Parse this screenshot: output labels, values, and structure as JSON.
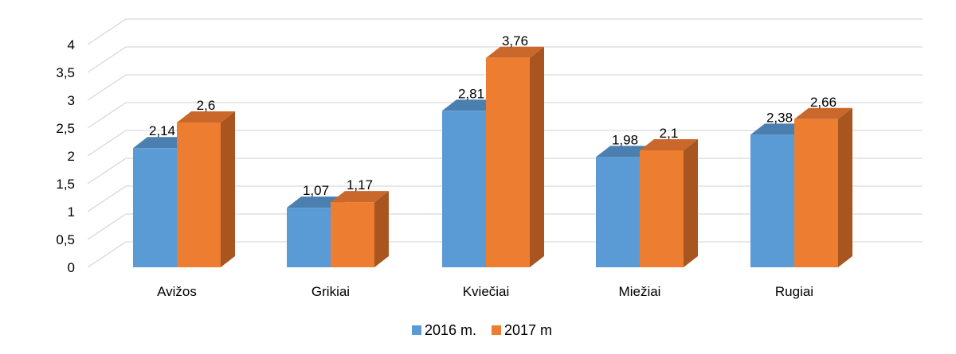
{
  "chart_data": {
    "type": "bar",
    "categories": [
      "Avižos",
      "Grikiai",
      "Kviečiai",
      "Miežiai",
      "Rugiai"
    ],
    "series": [
      {
        "name": "2016 m.",
        "values": [
          2.14,
          1.07,
          2.81,
          1.98,
          2.38
        ],
        "value_labels": [
          "2,14",
          "1,07",
          "2,81",
          "1,98",
          "2,38"
        ]
      },
      {
        "name": "2017 m",
        "values": [
          2.6,
          1.17,
          3.76,
          2.1,
          2.66
        ],
        "value_labels": [
          "2,6",
          "1,17",
          "3,76",
          "2,1",
          "2,66"
        ]
      }
    ],
    "ylim": [
      0,
      4
    ],
    "yticks": [
      0,
      0.5,
      1,
      1.5,
      2,
      2.5,
      3,
      3.5,
      4
    ],
    "ytick_labels": [
      "0",
      "0,5",
      "1",
      "1,5",
      "2",
      "2,5",
      "3",
      "3,5",
      "4"
    ],
    "grid": true,
    "three_d": true,
    "legend_position": "bottom",
    "colors": {
      "series": [
        "#5B9BD5",
        "#ED7D31"
      ],
      "series_top": [
        "#4A7FB0",
        "#C9682A"
      ],
      "series_side": [
        "#3F6E99",
        "#A85520"
      ],
      "grid": "#D9D9D9"
    }
  }
}
